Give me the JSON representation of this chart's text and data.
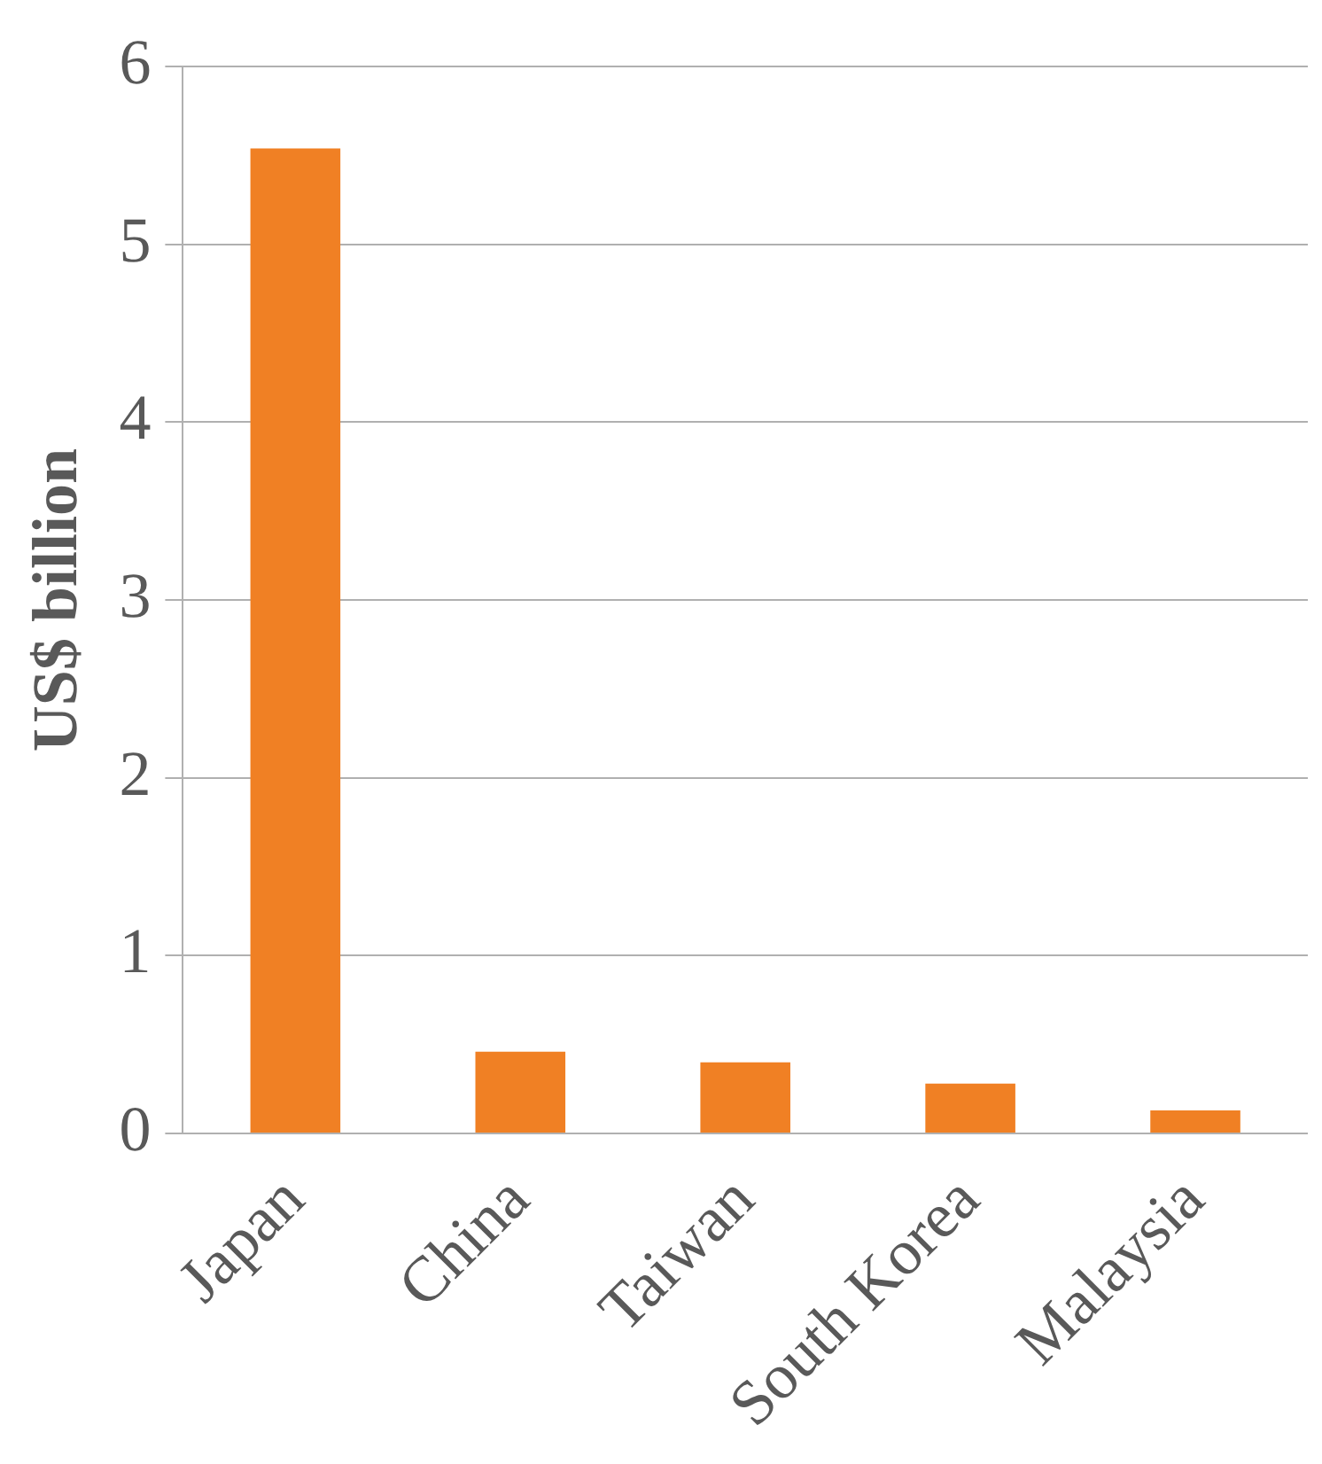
{
  "chart_data": {
    "type": "bar",
    "ylabel": "US$ billion",
    "categories": [
      "Japan",
      "China",
      "Taiwan",
      "South Korea",
      "Malaysia"
    ],
    "values": [
      5.54,
      0.46,
      0.4,
      0.28,
      0.13
    ],
    "color": "#f08024",
    "ylim": [
      0,
      6
    ],
    "yticks": [
      0,
      1,
      2,
      3,
      4,
      5,
      6
    ],
    "grid": "y",
    "legend": false
  }
}
